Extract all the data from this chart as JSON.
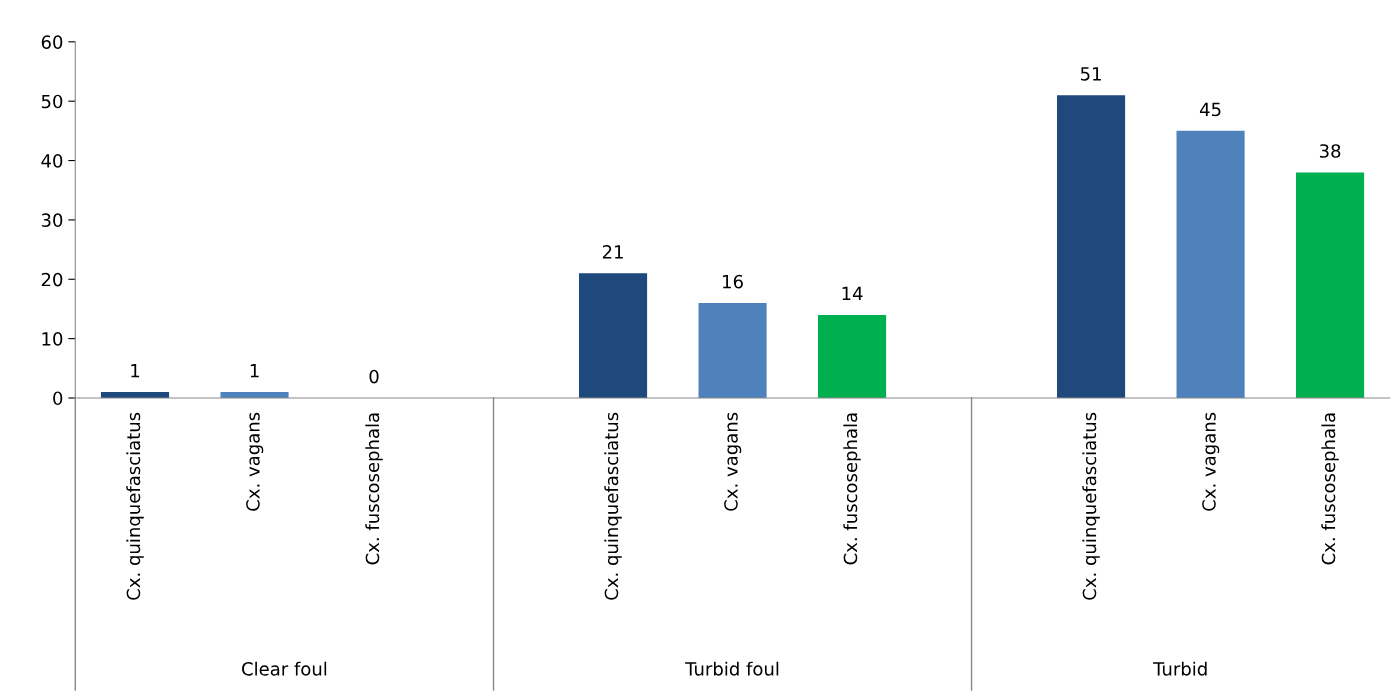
{
  "chart_data": {
    "type": "bar",
    "categories": [
      "Cx. quinquefasciatus",
      "Cx. vagans",
      "Cx. fuscosephala",
      null,
      "Cx. quinquefasciatus",
      "Cx. vagans",
      "Cx. fuscosephala",
      null,
      "Cx. quinquefasciatus",
      "Cx. vagans",
      "Cx. fuscosephala"
    ],
    "values": [
      1,
      1,
      0,
      null,
      21,
      16,
      14,
      null,
      51,
      45,
      38
    ],
    "colors": [
      "#1f497d",
      "#4f81bd",
      "#00b050",
      "#ffffff",
      "#1f497d",
      "#4f81bd",
      "#00b050",
      "#ffffff",
      "#1f497d",
      "#4f81bd",
      "#00b050"
    ],
    "annotations": [
      "Clear foul",
      "Turbid foul",
      "Turbid"
    ],
    "ylim": [
      0,
      60
    ],
    "yticks": [
      0,
      10,
      20,
      30,
      40,
      50,
      60
    ],
    "data_labels": true,
    "grid": false,
    "legend": false
  }
}
